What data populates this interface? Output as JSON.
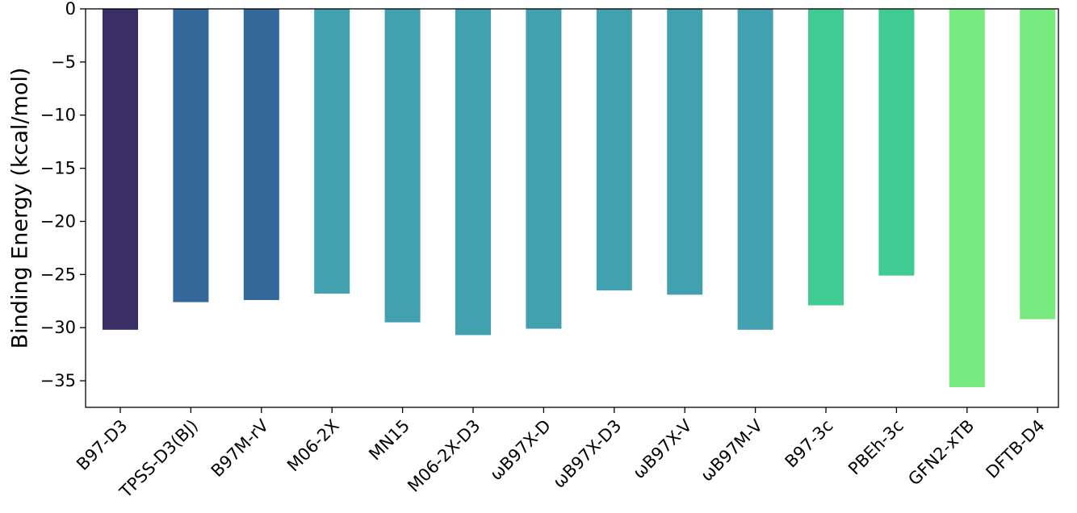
{
  "chart_data": {
    "type": "bar",
    "title": "",
    "xlabel": "",
    "ylabel": "Binding Energy (kcal/mol)",
    "ylim": [
      -37.5,
      0
    ],
    "yticks": [
      0,
      -5,
      -10,
      -15,
      -20,
      -25,
      -30,
      -35
    ],
    "ytick_labels": [
      "0",
      "−5",
      "−10",
      "−15",
      "−20",
      "−25",
      "−30",
      "−35"
    ],
    "grid": false,
    "legend": "none",
    "categories": [
      "B97-D3",
      "TPSS-D3(BJ)",
      "B97M-rV",
      "M06-2X",
      "MN15",
      "M06-2X-D3",
      "ωB97X-D",
      "ωB97X-D3",
      "ωB97X-V",
      "ωB97M-V",
      "B97-3c",
      "PBEh-3c",
      "GFN2-xTB",
      "DFTB-D4"
    ],
    "values": [
      -30.2,
      -27.6,
      -27.4,
      -26.8,
      -29.5,
      -30.7,
      -30.1,
      -26.5,
      -26.9,
      -30.2,
      -27.9,
      -25.1,
      -35.6,
      -29.2
    ],
    "colors": [
      "#3b2d66",
      "#35689a",
      "#35689a",
      "#41a1ae",
      "#41a1ae",
      "#41a1ae",
      "#41a1ae",
      "#41a1ae",
      "#41a1ae",
      "#41a1ae",
      "#3fcb92",
      "#3fcb92",
      "#77eb7f",
      "#77eb7f"
    ]
  }
}
